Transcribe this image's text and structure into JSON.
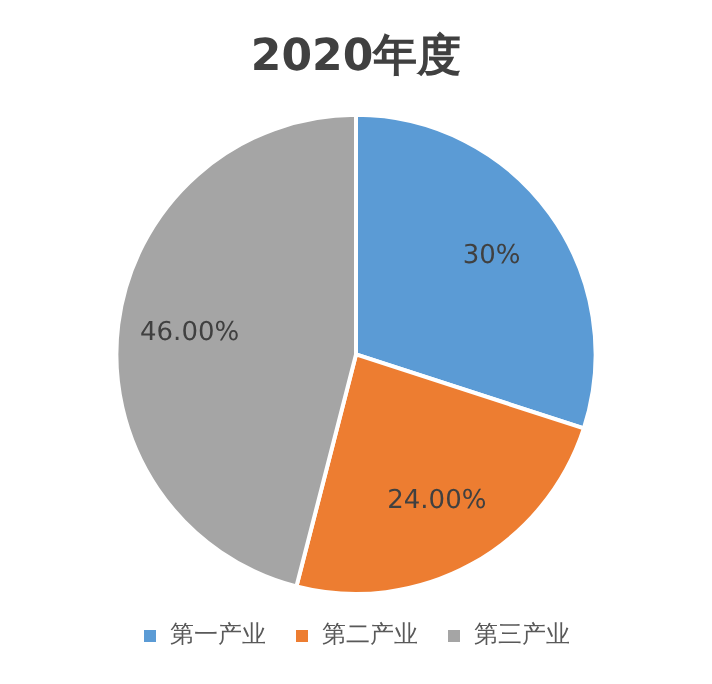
{
  "chart_data": {
    "type": "pie",
    "title": "2020年度",
    "categories": [
      "第一产业",
      "第二产业",
      "第三产业"
    ],
    "values": [
      30,
      24,
      46
    ],
    "value_labels": [
      "30%",
      "24.00%",
      "46.00%"
    ],
    "colors": [
      "#5b9bd5",
      "#ed7d31",
      "#a5a5a5"
    ],
    "legend": "bottom"
  }
}
